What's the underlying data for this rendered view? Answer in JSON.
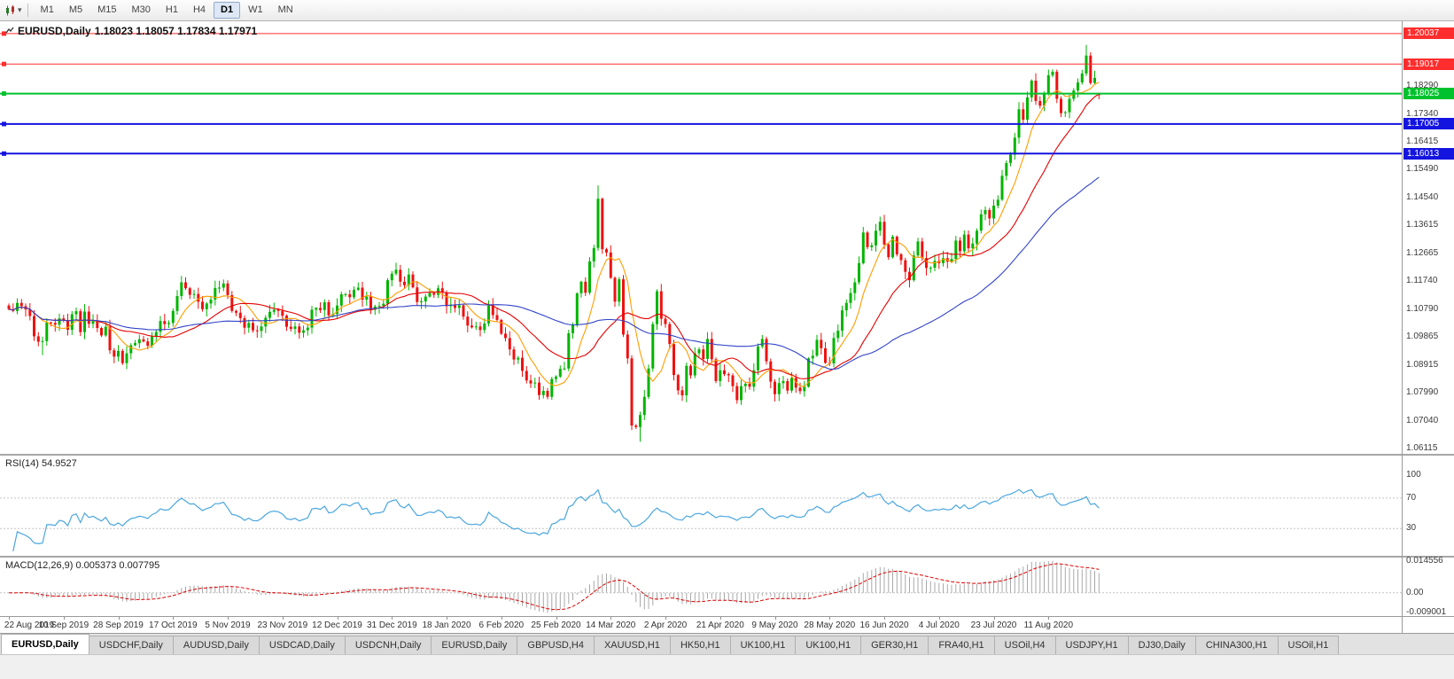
{
  "toolbar": {
    "timeframes": [
      "M1",
      "M5",
      "M15",
      "M30",
      "H1",
      "H4",
      "D1",
      "W1",
      "MN"
    ],
    "active_timeframe": "D1"
  },
  "chart_data": {
    "type": "candlestick",
    "symbol": "EURUSD",
    "timeframe": "Daily",
    "title": "EURUSD,Daily",
    "ohlc_text": "1.18023 1.18057 1.17834 1.17971",
    "colors": {
      "bull": "#00b500",
      "bear": "#ee1111"
    },
    "ylim": [
      1.0595,
      1.2045
    ],
    "y_ticks": [
      1.1829,
      1.1734,
      1.16415,
      1.1549,
      1.1454,
      1.13615,
      1.12665,
      1.1174,
      1.1079,
      1.09865,
      1.08915,
      1.0799,
      1.0704,
      1.06115
    ],
    "hlines": [
      {
        "price": 1.20037,
        "color": "#ff2d2d",
        "width": 1
      },
      {
        "price": 1.19017,
        "color": "#ff2d2d",
        "width": 1
      },
      {
        "price": 1.18025,
        "color": "#00c22e",
        "width": 2
      },
      {
        "price": 1.17005,
        "color": "#1414e0",
        "width": 2
      },
      {
        "price": 1.16013,
        "color": "#1414e0",
        "width": 2
      }
    ],
    "ma": [
      {
        "period": 8,
        "color": "#ff9d00"
      },
      {
        "period": 21,
        "color": "#e60000"
      },
      {
        "period": 50,
        "color": "#3144c8"
      }
    ],
    "wick_overrides": [
      {
        "i": 8,
        "low": 1.0926
      },
      {
        "i": 28,
        "low": 1.0879
      },
      {
        "i": 128,
        "low": 1.0778
      },
      {
        "i": 140,
        "high": 1.1495
      },
      {
        "i": 148,
        "low": 1.0675
      },
      {
        "i": 150,
        "low": 1.0636
      },
      {
        "i": 256,
        "high": 1.1966
      }
    ],
    "last_candle": {
      "o": 1.18023,
      "h": 1.18057,
      "l": 1.17834,
      "c": 1.17971
    },
    "closes": [
      1.108,
      1.1074,
      1.1101,
      1.109,
      1.1079,
      1.1057,
      1.0989,
      1.0971,
      1.0973,
      1.1035,
      1.1034,
      1.1028,
      1.1049,
      1.1043,
      1.1011,
      1.1063,
      1.1073,
      1.1003,
      1.1072,
      1.1031,
      1.1041,
      1.1017,
      1.0992,
      1.1021,
      1.0942,
      1.0921,
      1.094,
      1.0899,
      1.0932,
      1.0959,
      1.0966,
      1.0979,
      1.0972,
      1.0957,
      1.0988,
      1.1004,
      1.104,
      1.103,
      1.1034,
      1.1074,
      1.1124,
      1.117,
      1.115,
      1.1128,
      1.1131,
      1.1105,
      1.108,
      1.1099,
      1.1112,
      1.1151,
      1.1152,
      1.1166,
      1.1127,
      1.1074,
      1.1068,
      1.105,
      1.1018,
      1.1034,
      1.1009,
      1.1007,
      1.1022,
      1.1051,
      1.1071,
      1.1078,
      1.1074,
      1.1058,
      1.1021,
      1.1014,
      1.1022,
      1.1001,
      1.1009,
      1.1018,
      1.1078,
      1.1084,
      1.1077,
      1.1103,
      1.1059,
      1.1064,
      1.1092,
      1.113,
      1.113,
      1.112,
      1.1145,
      1.1152,
      1.1112,
      1.1122,
      1.1078,
      1.1089,
      1.1091,
      1.1098,
      1.1177,
      1.1199,
      1.1212,
      1.1172,
      1.116,
      1.1196,
      1.1153,
      1.1104,
      1.1106,
      1.1122,
      1.1134,
      1.1128,
      1.115,
      1.1136,
      1.109,
      1.1095,
      1.1084,
      1.1093,
      1.1055,
      1.1025,
      1.1019,
      1.1022,
      1.101,
      1.1032,
      1.1093,
      1.106,
      1.1044,
      1.0998,
      1.0983,
      1.0945,
      1.0911,
      1.0917,
      1.0873,
      1.0841,
      1.0831,
      1.0834,
      1.0792,
      1.0806,
      1.0786,
      1.0846,
      1.0854,
      1.088,
      1.0881,
      1.0999,
      1.1026,
      1.1133,
      1.1172,
      1.1135,
      1.124,
      1.1285,
      1.145,
      1.1281,
      1.127,
      1.1185,
      1.1105,
      1.118,
      1.0995,
      1.0915,
      1.069,
      1.0685,
      1.0725,
      1.0786,
      1.0881,
      1.103,
      1.114,
      1.1048,
      1.103,
      1.0963,
      1.0859,
      1.0808,
      1.0791,
      1.089,
      1.0858,
      1.0932,
      1.0945,
      1.0913,
      1.098,
      1.0912,
      1.0839,
      1.0875,
      1.0862,
      1.0858,
      1.0822,
      1.0775,
      1.0822,
      1.083,
      1.082,
      1.0875,
      1.0955,
      1.098,
      1.0905,
      1.0837,
      1.0795,
      1.0832,
      1.0839,
      1.0807,
      1.0849,
      1.0817,
      1.0805,
      1.082,
      1.0915,
      1.0924,
      1.0977,
      1.0949,
      1.09,
      1.0898,
      1.0983,
      1.1008,
      1.1076,
      1.1101,
      1.1134,
      1.117,
      1.1234,
      1.1337,
      1.1288,
      1.1294,
      1.1343,
      1.1373,
      1.1297,
      1.1254,
      1.1323,
      1.1264,
      1.1244,
      1.1205,
      1.1177,
      1.126,
      1.1307,
      1.1251,
      1.1218,
      1.1219,
      1.1242,
      1.1234,
      1.1251,
      1.1239,
      1.1248,
      1.131,
      1.1274,
      1.133,
      1.1284,
      1.13,
      1.1343,
      1.1398,
      1.1412,
      1.1384,
      1.1427,
      1.1447,
      1.1527,
      1.157,
      1.1598,
      1.1655,
      1.175,
      1.1715,
      1.179,
      1.1846,
      1.1778,
      1.1762,
      1.1803,
      1.1864,
      1.1876,
      1.1785,
      1.1737,
      1.174,
      1.1785,
      1.1813,
      1.184,
      1.187,
      1.193,
      1.1838,
      1.1855,
      1.17971
    ],
    "rsi": {
      "label": "RSI(14) 54.9527",
      "color": "#4aa6de",
      "levels": [
        100,
        70,
        30
      ],
      "dashed_levels": [
        70,
        30
      ],
      "ylim": [
        -6,
        126
      ]
    },
    "macd": {
      "label": "MACD(12,26,9) 0.005373 0.007795",
      "tick_labels": [
        "0.014556",
        "0.00",
        "-0.009001"
      ],
      "tick_values": [
        0.014556,
        0,
        -0.009001
      ],
      "ylim": [
        -0.0105,
        0.016
      ],
      "hist_color": "#a8a8a8",
      "signal_color": "#dd0000"
    },
    "x_labels": [
      "22 Aug 2019",
      "10 Sep 2019",
      "28 Sep 2019",
      "17 Oct 2019",
      "5 Nov 2019",
      "23 Nov 2019",
      "12 Dec 2019",
      "31 Dec 2019",
      "18 Jan 2020",
      "6 Feb 2020",
      "25 Feb 2020",
      "14 Mar 2020",
      "2 Apr 2020",
      "21 Apr 2020",
      "9 May 2020",
      "28 May 2020",
      "16 Jun 2020",
      "4 Jul 2020",
      "23 Jul 2020",
      "11 Aug 2020"
    ]
  },
  "tabs": {
    "active_index": 0,
    "items": [
      "EURUSD,Daily",
      "USDCHF,Daily",
      "AUDUSD,Daily",
      "USDCAD,Daily",
      "USDCNH,Daily",
      "EURUSD,Daily",
      "GBPUSD,H4",
      "XAUUSD,H1",
      "HK50,H1",
      "UK100,H1",
      "UK100,H1",
      "GER30,H1",
      "FRA40,H1",
      "USOil,H4",
      "USDJPY,H1",
      "DJ30,Daily",
      "CHINA300,H1",
      "USOil,H1"
    ]
  }
}
